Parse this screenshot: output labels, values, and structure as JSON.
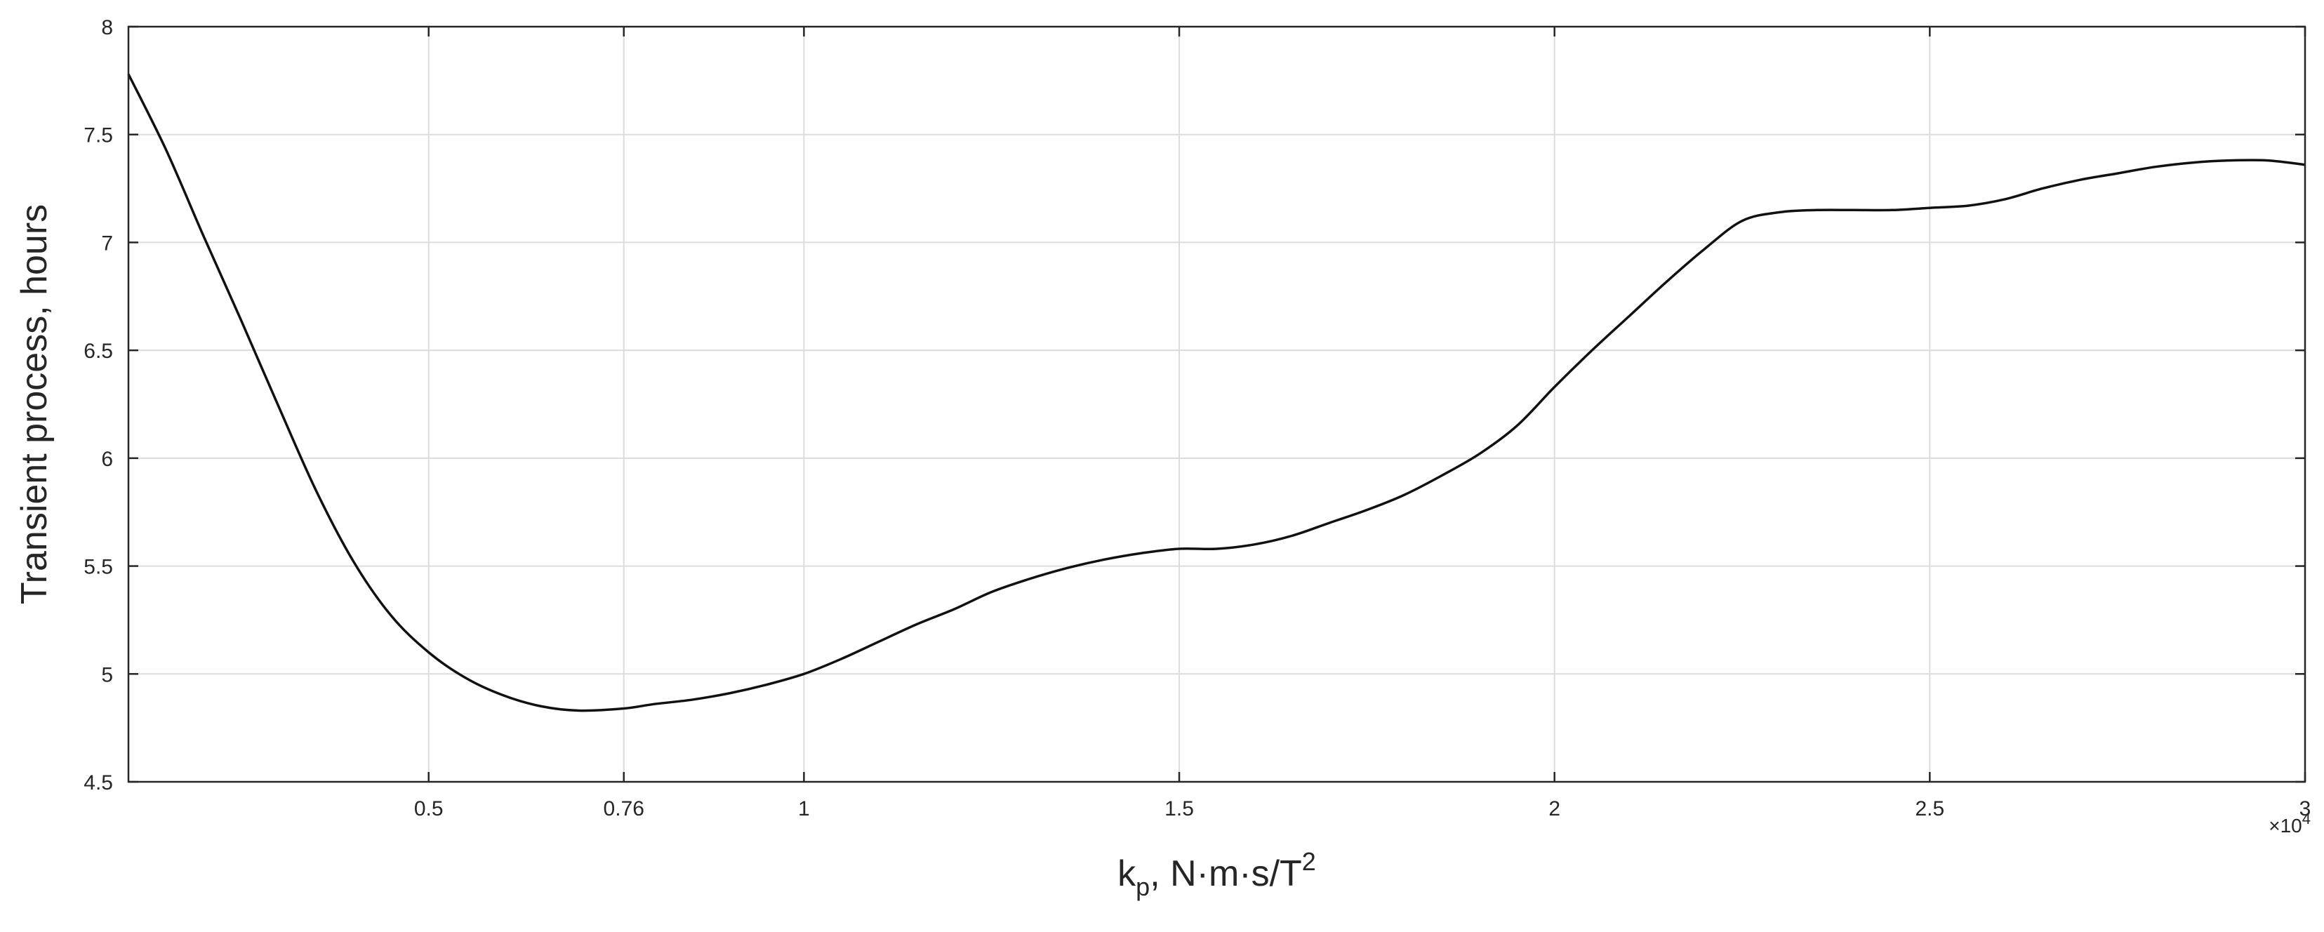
{
  "chart_data": {
    "type": "line",
    "title": "",
    "xlabel_main": "k",
    "xlabel_sub": "p",
    "xlabel_rest": ", N·m·s/T",
    "xlabel_sup": "2",
    "ylabel": "Transient process, hours",
    "x_exponent_times": "×10",
    "x_exponent_power": "4",
    "xlim": [
      0.1,
      3.0
    ],
    "ylim": [
      4.5,
      8.0
    ],
    "x_ticks": [
      0.5,
      0.76,
      1.0,
      1.5,
      2.0,
      2.5,
      3.0
    ],
    "x_tick_labels": [
      "0.5",
      "0.76",
      "1",
      "1.5",
      "2",
      "2.5",
      "3"
    ],
    "y_ticks": [
      4.5,
      5.0,
      5.5,
      6.0,
      6.5,
      7.0,
      7.5,
      8.0
    ],
    "y_tick_labels": [
      "4.5",
      "5",
      "5.5",
      "6",
      "6.5",
      "7",
      "7.5",
      "8"
    ],
    "grid": true,
    "series": [
      {
        "x": [
          0.1,
          0.15,
          0.2,
          0.25,
          0.3,
          0.35,
          0.4,
          0.45,
          0.5,
          0.55,
          0.6,
          0.65,
          0.7,
          0.76,
          0.8,
          0.85,
          0.9,
          0.95,
          1.0,
          1.05,
          1.1,
          1.15,
          1.2,
          1.25,
          1.3,
          1.35,
          1.4,
          1.45,
          1.5,
          1.55,
          1.6,
          1.65,
          1.7,
          1.75,
          1.8,
          1.85,
          1.9,
          1.95,
          2.0,
          2.05,
          2.1,
          2.15,
          2.2,
          2.25,
          2.3,
          2.35,
          2.4,
          2.45,
          2.5,
          2.55,
          2.6,
          2.65,
          2.7,
          2.75,
          2.8,
          2.85,
          2.9,
          2.95,
          3.0
        ],
        "y": [
          7.78,
          7.43,
          7.03,
          6.64,
          6.24,
          5.85,
          5.52,
          5.27,
          5.1,
          4.98,
          4.9,
          4.85,
          4.83,
          4.84,
          4.86,
          4.88,
          4.91,
          4.95,
          5.0,
          5.07,
          5.15,
          5.23,
          5.3,
          5.38,
          5.44,
          5.49,
          5.53,
          5.56,
          5.58,
          5.58,
          5.6,
          5.64,
          5.7,
          5.76,
          5.83,
          5.92,
          6.02,
          6.15,
          6.33,
          6.5,
          6.66,
          6.82,
          6.97,
          7.1,
          7.14,
          7.15,
          7.15,
          7.15,
          7.16,
          7.17,
          7.2,
          7.25,
          7.29,
          7.32,
          7.35,
          7.37,
          7.38,
          7.38,
          7.36
        ]
      }
    ]
  }
}
